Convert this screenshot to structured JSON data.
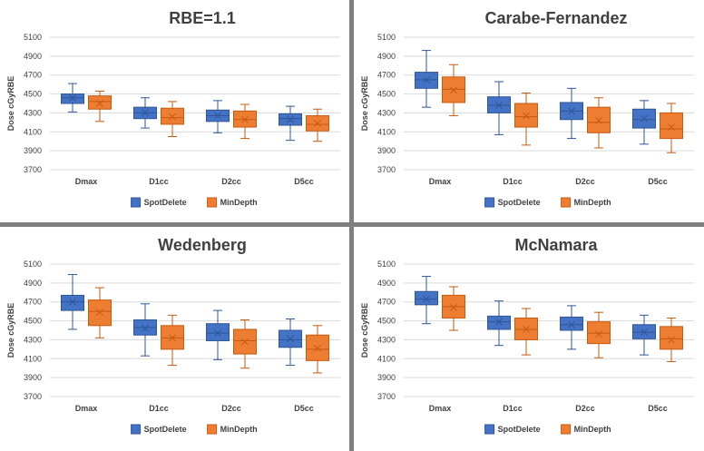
{
  "colors": {
    "SpotDelete": {
      "fill": "#4472c4",
      "stroke": "#2f5597"
    },
    "MinDepth": {
      "fill": "#ed7d31",
      "stroke": "#c55a11"
    }
  },
  "chart_data": [
    {
      "type": "box",
      "title": "RBE=1.1",
      "ylabel": "Dose cGyRBE",
      "ylim": [
        3700,
        5100
      ],
      "yticks": [
        3700,
        3900,
        4100,
        4300,
        4500,
        4700,
        4900,
        5100
      ],
      "categories": [
        "Dmax",
        "D1cc",
        "D2cc",
        "D5cc"
      ],
      "legend": [
        "SpotDelete",
        "MinDepth"
      ],
      "series": [
        {
          "name": "SpotDelete",
          "boxes": [
            {
              "min": 4310,
              "q1": 4400,
              "median": 4460,
              "q3": 4500,
              "max": 4610,
              "mean": 4460
            },
            {
              "min": 4140,
              "q1": 4240,
              "median": 4300,
              "q3": 4360,
              "max": 4460,
              "mean": 4300
            },
            {
              "min": 4090,
              "q1": 4210,
              "median": 4270,
              "q3": 4330,
              "max": 4430,
              "mean": 4270
            },
            {
              "min": 4010,
              "q1": 4170,
              "median": 4240,
              "q3": 4290,
              "max": 4370,
              "mean": 4230
            }
          ]
        },
        {
          "name": "MinDepth",
          "boxes": [
            {
              "min": 4210,
              "q1": 4340,
              "median": 4420,
              "q3": 4480,
              "max": 4530,
              "mean": 4400
            },
            {
              "min": 4050,
              "q1": 4180,
              "median": 4250,
              "q3": 4350,
              "max": 4420,
              "mean": 4260
            },
            {
              "min": 4030,
              "q1": 4150,
              "median": 4230,
              "q3": 4320,
              "max": 4390,
              "mean": 4230
            },
            {
              "min": 4000,
              "q1": 4110,
              "median": 4180,
              "q3": 4270,
              "max": 4340,
              "mean": 4190
            }
          ]
        }
      ]
    },
    {
      "type": "box",
      "title": "Carabe-Fernandez",
      "ylabel": "Dose cGyRBE",
      "ylim": [
        3700,
        5100
      ],
      "yticks": [
        3700,
        3900,
        4100,
        4300,
        4500,
        4700,
        4900,
        5100
      ],
      "categories": [
        "Dmax",
        "D1cc",
        "D2cc",
        "D5cc"
      ],
      "legend": [
        "SpotDelete",
        "MinDepth"
      ],
      "series": [
        {
          "name": "SpotDelete",
          "boxes": [
            {
              "min": 4360,
              "q1": 4560,
              "median": 4650,
              "q3": 4730,
              "max": 4960,
              "mean": 4650
            },
            {
              "min": 4070,
              "q1": 4300,
              "median": 4380,
              "q3": 4470,
              "max": 4630,
              "mean": 4380
            },
            {
              "min": 4030,
              "q1": 4230,
              "median": 4320,
              "q3": 4410,
              "max": 4560,
              "mean": 4320
            },
            {
              "min": 3970,
              "q1": 4140,
              "median": 4230,
              "q3": 4340,
              "max": 4430,
              "mean": 4240
            }
          ]
        },
        {
          "name": "MinDepth",
          "boxes": [
            {
              "min": 4270,
              "q1": 4410,
              "median": 4550,
              "q3": 4680,
              "max": 4810,
              "mean": 4540
            },
            {
              "min": 3960,
              "q1": 4150,
              "median": 4260,
              "q3": 4400,
              "max": 4510,
              "mean": 4270
            },
            {
              "min": 3930,
              "q1": 4090,
              "median": 4200,
              "q3": 4360,
              "max": 4460,
              "mean": 4220
            },
            {
              "min": 3880,
              "q1": 4030,
              "median": 4130,
              "q3": 4300,
              "max": 4400,
              "mean": 4150
            }
          ]
        }
      ]
    },
    {
      "type": "box",
      "title": "Wedenberg",
      "ylabel": "Dose cGyRBE",
      "ylim": [
        3700,
        5100
      ],
      "yticks": [
        3700,
        3900,
        4100,
        4300,
        4500,
        4700,
        4900,
        5100
      ],
      "categories": [
        "Dmax",
        "D1cc",
        "D2cc",
        "D5cc"
      ],
      "legend": [
        "SpotDelete",
        "MinDepth"
      ],
      "series": [
        {
          "name": "SpotDelete",
          "boxes": [
            {
              "min": 4410,
              "q1": 4610,
              "median": 4700,
              "q3": 4770,
              "max": 4990,
              "mean": 4700
            },
            {
              "min": 4130,
              "q1": 4350,
              "median": 4430,
              "q3": 4510,
              "max": 4680,
              "mean": 4420
            },
            {
              "min": 4090,
              "q1": 4290,
              "median": 4370,
              "q3": 4470,
              "max": 4610,
              "mean": 4370
            },
            {
              "min": 4030,
              "q1": 4220,
              "median": 4300,
              "q3": 4400,
              "max": 4520,
              "mean": 4310
            }
          ]
        },
        {
          "name": "MinDepth",
          "boxes": [
            {
              "min": 4320,
              "q1": 4450,
              "median": 4600,
              "q3": 4720,
              "max": 4850,
              "mean": 4590
            },
            {
              "min": 4030,
              "q1": 4200,
              "median": 4320,
              "q3": 4450,
              "max": 4560,
              "mean": 4320
            },
            {
              "min": 4000,
              "q1": 4150,
              "median": 4290,
              "q3": 4410,
              "max": 4510,
              "mean": 4280
            },
            {
              "min": 3950,
              "q1": 4080,
              "median": 4200,
              "q3": 4350,
              "max": 4450,
              "mean": 4210
            }
          ]
        }
      ]
    },
    {
      "type": "box",
      "title": "McNamara",
      "ylabel": "Dose cGyRBE",
      "ylim": [
        3700,
        5100
      ],
      "yticks": [
        3700,
        3900,
        4100,
        4300,
        4500,
        4700,
        4900,
        5100
      ],
      "categories": [
        "Dmax",
        "D1cc",
        "D2cc",
        "D5cc"
      ],
      "legend": [
        "SpotDelete",
        "MinDepth"
      ],
      "series": [
        {
          "name": "SpotDelete",
          "boxes": [
            {
              "min": 4470,
              "q1": 4670,
              "median": 4730,
              "q3": 4810,
              "max": 4970,
              "mean": 4730
            },
            {
              "min": 4240,
              "q1": 4410,
              "median": 4490,
              "q3": 4550,
              "max": 4710,
              "mean": 4490
            },
            {
              "min": 4200,
              "q1": 4400,
              "median": 4460,
              "q3": 4540,
              "max": 4660,
              "mean": 4460
            },
            {
              "min": 4140,
              "q1": 4310,
              "median": 4380,
              "q3": 4460,
              "max": 4560,
              "mean": 4380
            }
          ]
        },
        {
          "name": "MinDepth",
          "boxes": [
            {
              "min": 4400,
              "q1": 4530,
              "median": 4650,
              "q3": 4770,
              "max": 4860,
              "mean": 4640
            },
            {
              "min": 4140,
              "q1": 4300,
              "median": 4410,
              "q3": 4530,
              "max": 4630,
              "mean": 4410
            },
            {
              "min": 4110,
              "q1": 4260,
              "median": 4370,
              "q3": 4490,
              "max": 4590,
              "mean": 4360
            },
            {
              "min": 4070,
              "q1": 4200,
              "median": 4310,
              "q3": 4440,
              "max": 4530,
              "mean": 4300
            }
          ]
        }
      ]
    }
  ]
}
